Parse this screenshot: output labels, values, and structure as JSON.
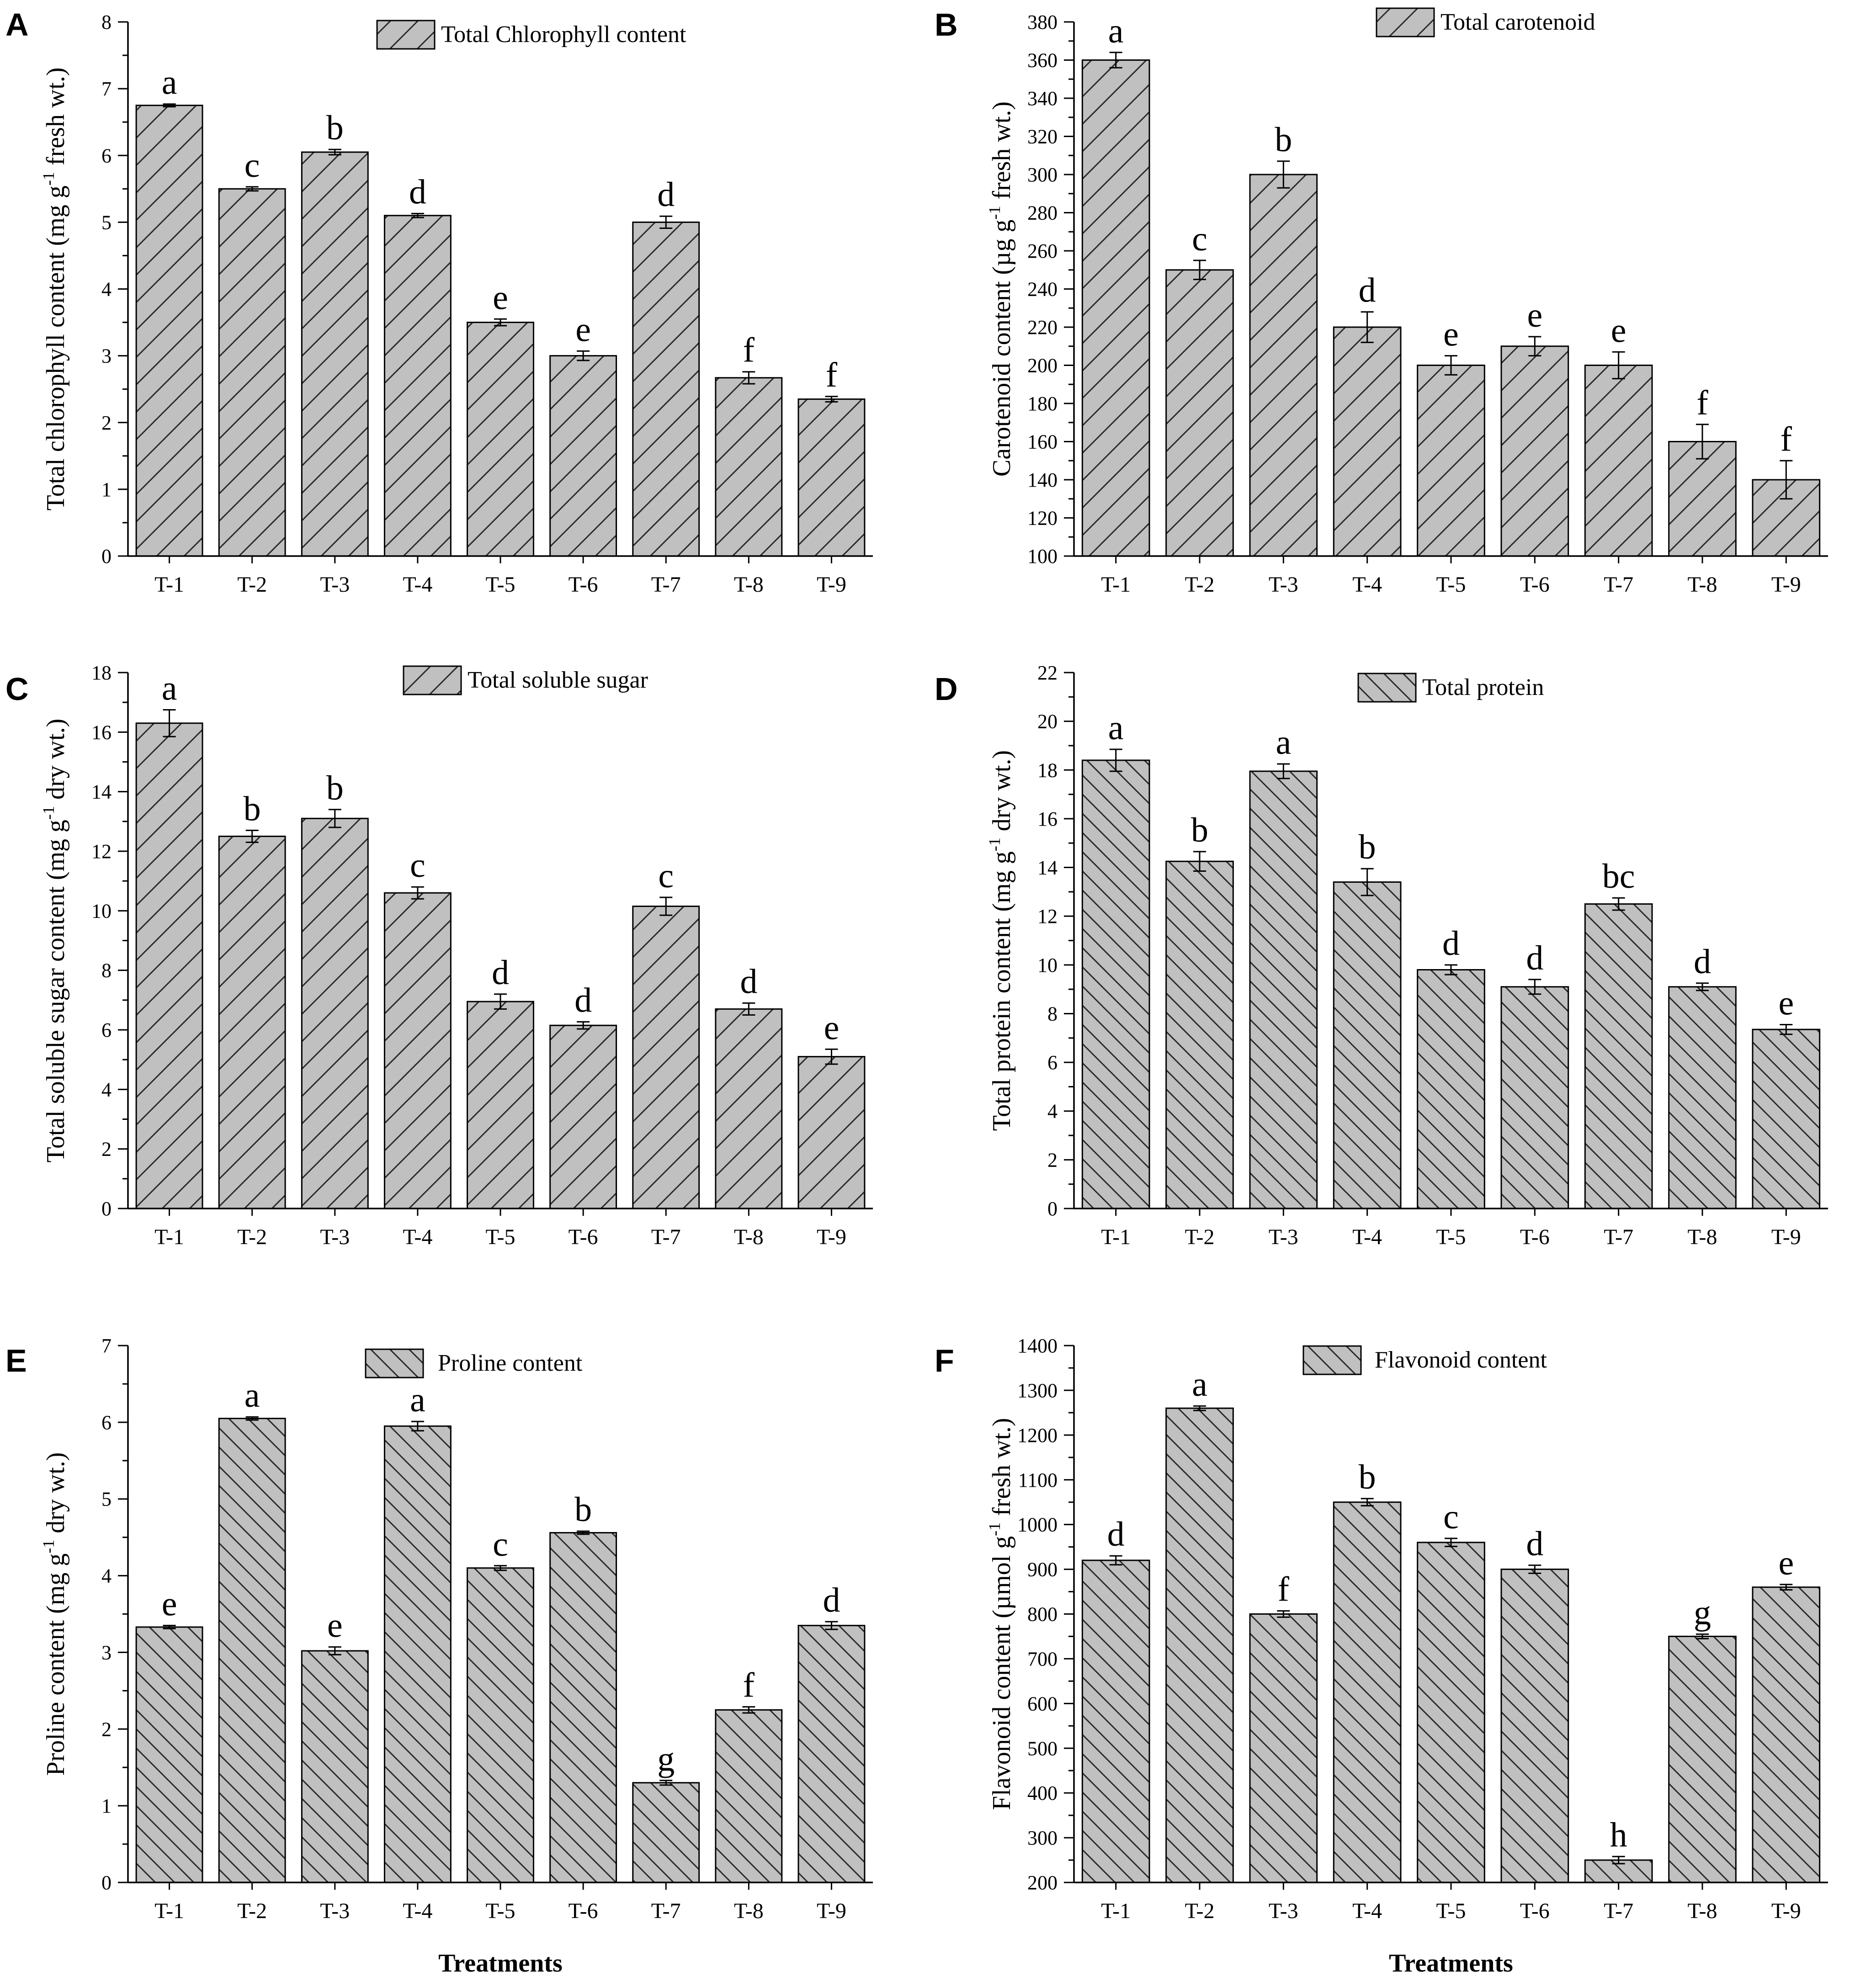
{
  "chart_data": [
    {
      "panel": "A",
      "type": "bar",
      "legend": "Total Chlorophyll content",
      "ylabel_main": "Total chlorophyll content (mg g",
      "ylabel_sup": "-1",
      "ylabel_end": " fresh wt.)",
      "xlabel": "",
      "categories": [
        "T-1",
        "T-2",
        "T-3",
        "T-4",
        "T-5",
        "T-6",
        "T-7",
        "T-8",
        "T-9"
      ],
      "values": [
        6.75,
        5.5,
        6.05,
        5.1,
        3.5,
        3.0,
        5.0,
        2.67,
        2.35
      ],
      "errors": [
        0.02,
        0.03,
        0.04,
        0.03,
        0.05,
        0.07,
        0.09,
        0.09,
        0.04
      ],
      "letters": [
        "a",
        "c",
        "b",
        "d",
        "e",
        "e",
        "d",
        "f",
        "f"
      ],
      "ylim": [
        0,
        8
      ],
      "yticks": [
        0,
        1,
        2,
        3,
        4,
        5,
        6,
        7,
        8
      ],
      "hatch": "forward"
    },
    {
      "panel": "B",
      "type": "bar",
      "legend": "Total carotenoid",
      "ylabel_main": "Carotenoid content (µg g",
      "ylabel_sup": "-1",
      "ylabel_end": " fresh wt.)",
      "xlabel": "",
      "categories": [
        "T-1",
        "T-2",
        "T-3",
        "T-4",
        "T-5",
        "T-6",
        "T-7",
        "T-8",
        "T-9"
      ],
      "values": [
        360,
        250,
        300,
        220,
        200,
        210,
        200,
        160,
        140
      ],
      "errors": [
        4,
        5,
        7,
        8,
        5,
        5,
        7,
        9,
        10
      ],
      "letters": [
        "a",
        "c",
        "b",
        "d",
        "e",
        "e",
        "e",
        "f",
        "f"
      ],
      "ylim": [
        100,
        380
      ],
      "yticks": [
        100,
        120,
        140,
        160,
        180,
        200,
        220,
        240,
        260,
        280,
        300,
        320,
        340,
        360,
        380
      ],
      "hatch": "forward"
    },
    {
      "panel": "C",
      "type": "bar",
      "legend": "Total soluble sugar",
      "ylabel_main": "Total soluble sugar content (mg g",
      "ylabel_sup": "-1",
      "ylabel_end": " dry wt.)",
      "xlabel": "",
      "categories": [
        "T-1",
        "T-2",
        "T-3",
        "T-4",
        "T-5",
        "T-6",
        "T-7",
        "T-8",
        "T-9"
      ],
      "values": [
        16.3,
        12.5,
        13.1,
        10.6,
        6.95,
        6.15,
        10.15,
        6.7,
        5.1
      ],
      "errors": [
        0.45,
        0.2,
        0.3,
        0.2,
        0.25,
        0.12,
        0.3,
        0.2,
        0.25
      ],
      "letters": [
        "a",
        "b",
        "b",
        "c",
        "d",
        "d",
        "c",
        "d",
        "e"
      ],
      "ylim": [
        0,
        18
      ],
      "yticks": [
        0,
        2,
        4,
        6,
        8,
        10,
        12,
        14,
        16,
        18
      ],
      "hatch": "forward"
    },
    {
      "panel": "D",
      "type": "bar",
      "legend": "Total protein",
      "ylabel_main": "Total protein content (mg g",
      "ylabel_sup": "-1",
      "ylabel_end": " dry wt.)",
      "xlabel": "",
      "categories": [
        "T-1",
        "T-2",
        "T-3",
        "T-4",
        "T-5",
        "T-6",
        "T-7",
        "T-8",
        "T-9"
      ],
      "values": [
        18.4,
        14.25,
        17.95,
        13.4,
        9.8,
        9.1,
        12.5,
        9.1,
        7.35
      ],
      "errors": [
        0.45,
        0.4,
        0.3,
        0.55,
        0.2,
        0.3,
        0.25,
        0.15,
        0.2
      ],
      "letters": [
        "a",
        "b",
        "a",
        "b",
        "d",
        "d",
        "bc",
        "d",
        "e"
      ],
      "ylim": [
        0,
        22
      ],
      "yticks": [
        0,
        2,
        4,
        6,
        8,
        10,
        12,
        14,
        16,
        18,
        20,
        22
      ],
      "hatch": "back"
    },
    {
      "panel": "E",
      "type": "bar",
      "legend": "Proline content",
      "ylabel_main": "Proline content (mg g",
      "ylabel_sup": "-1",
      "ylabel_end": " dry wt.)",
      "xlabel": "Treatments",
      "categories": [
        "T-1",
        "T-2",
        "T-3",
        "T-4",
        "T-5",
        "T-6",
        "T-7",
        "T-8",
        "T-9"
      ],
      "values": [
        3.33,
        6.05,
        3.02,
        5.95,
        4.1,
        4.56,
        1.3,
        2.25,
        3.35
      ],
      "errors": [
        0.02,
        0.02,
        0.05,
        0.06,
        0.03,
        0.02,
        0.03,
        0.04,
        0.05
      ],
      "letters": [
        "e",
        "a",
        "e",
        "a",
        "c",
        "b",
        "g",
        "f",
        "d"
      ],
      "ylim": [
        0,
        7
      ],
      "yticks": [
        0,
        1,
        2,
        3,
        4,
        5,
        6,
        7
      ],
      "hatch": "back"
    },
    {
      "panel": "F",
      "type": "bar",
      "legend": "Flavonoid content",
      "ylabel_main": "Flavonoid content (µmol g",
      "ylabel_sup": "-1",
      "ylabel_end": " fresh wt.)",
      "xlabel": "Treatments",
      "categories": [
        "T-1",
        "T-2",
        "T-3",
        "T-4",
        "T-5",
        "T-6",
        "T-7",
        "T-8",
        "T-9"
      ],
      "values": [
        920,
        1260,
        800,
        1050,
        960,
        900,
        250,
        750,
        860
      ],
      "errors": [
        10,
        5,
        7,
        8,
        9,
        9,
        8,
        5,
        6
      ],
      "letters": [
        "d",
        "a",
        "f",
        "b",
        "c",
        "d",
        "h",
        "g",
        "e"
      ],
      "ylim": [
        200,
        1400
      ],
      "yticks": [
        200,
        300,
        400,
        500,
        600,
        700,
        800,
        900,
        1000,
        1100,
        1200,
        1300,
        1400
      ],
      "hatch": "back"
    }
  ],
  "style": {
    "bar_fill": "#c0c0c0",
    "bar_stroke": "#000000",
    "axis_color": "#000000"
  }
}
